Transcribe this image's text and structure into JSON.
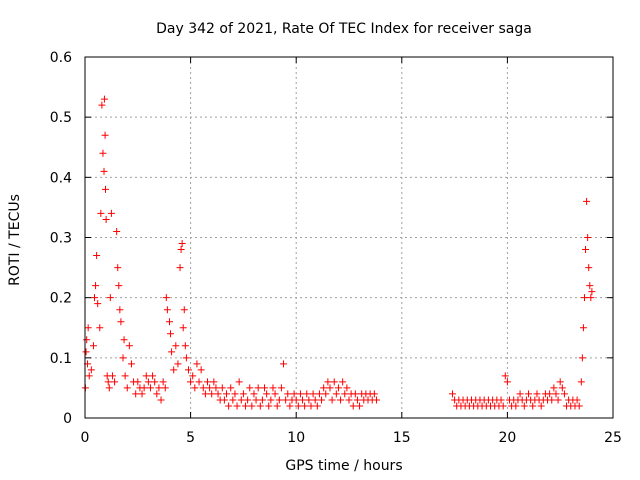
{
  "chart_data": {
    "type": "scatter",
    "title": "Day 342 of 2021, Rate Of TEC Index for receiver saga",
    "xlabel": "GPS time / hours",
    "ylabel": "ROTI / TECUs",
    "xlim": [
      0,
      25
    ],
    "ylim": [
      0,
      0.6
    ],
    "xticks": [
      0,
      5,
      10,
      15,
      20,
      25
    ],
    "xtick_labels": [
      "0",
      "5",
      "10",
      "15",
      "20",
      "25"
    ],
    "yticks": [
      0,
      0.1,
      0.2,
      0.3,
      0.4,
      0.5,
      0.6
    ],
    "ytick_labels": [
      "0",
      "0.1",
      "0.2",
      "0.3",
      "0.4",
      "0.5",
      "0.6"
    ],
    "grid": true,
    "marker": "+",
    "colors": {
      "points": "#ff0000",
      "grid": "#a0a0a0",
      "axes": "#000000"
    },
    "series": [
      {
        "name": "ROTI",
        "points": [
          [
            0.02,
            0.05
          ],
          [
            0.05,
            0.11
          ],
          [
            0.08,
            0.13
          ],
          [
            0.12,
            0.09
          ],
          [
            0.15,
            0.15
          ],
          [
            0.2,
            0.07
          ],
          [
            0.3,
            0.08
          ],
          [
            0.4,
            0.12
          ],
          [
            0.45,
            0.2
          ],
          [
            0.5,
            0.22
          ],
          [
            0.55,
            0.27
          ],
          [
            0.6,
            0.19
          ],
          [
            0.7,
            0.15
          ],
          [
            0.75,
            0.34
          ],
          [
            0.8,
            0.52
          ],
          [
            0.85,
            0.44
          ],
          [
            0.9,
            0.41
          ],
          [
            0.92,
            0.53
          ],
          [
            0.95,
            0.47
          ],
          [
            0.97,
            0.38
          ],
          [
            1.0,
            0.33
          ],
          [
            1.05,
            0.07
          ],
          [
            1.1,
            0.06
          ],
          [
            1.15,
            0.05
          ],
          [
            1.2,
            0.2
          ],
          [
            1.25,
            0.34
          ],
          [
            1.3,
            0.07
          ],
          [
            1.4,
            0.06
          ],
          [
            1.5,
            0.31
          ],
          [
            1.55,
            0.25
          ],
          [
            1.6,
            0.22
          ],
          [
            1.65,
            0.18
          ],
          [
            1.7,
            0.16
          ],
          [
            1.8,
            0.1
          ],
          [
            1.85,
            0.13
          ],
          [
            1.9,
            0.07
          ],
          [
            2.0,
            0.05
          ],
          [
            2.1,
            0.12
          ],
          [
            2.2,
            0.09
          ],
          [
            2.3,
            0.06
          ],
          [
            2.4,
            0.04
          ],
          [
            2.5,
            0.06
          ],
          [
            2.6,
            0.05
          ],
          [
            2.7,
            0.04
          ],
          [
            2.8,
            0.05
          ],
          [
            2.9,
            0.07
          ],
          [
            3.0,
            0.06
          ],
          [
            3.1,
            0.05
          ],
          [
            3.2,
            0.07
          ],
          [
            3.3,
            0.06
          ],
          [
            3.4,
            0.04
          ],
          [
            3.5,
            0.05
          ],
          [
            3.6,
            0.03
          ],
          [
            3.7,
            0.06
          ],
          [
            3.8,
            0.05
          ],
          [
            3.85,
            0.2
          ],
          [
            3.9,
            0.18
          ],
          [
            4.0,
            0.16
          ],
          [
            4.05,
            0.14
          ],
          [
            4.1,
            0.11
          ],
          [
            4.2,
            0.08
          ],
          [
            4.3,
            0.12
          ],
          [
            4.4,
            0.09
          ],
          [
            4.5,
            0.25
          ],
          [
            4.55,
            0.28
          ],
          [
            4.6,
            0.29
          ],
          [
            4.65,
            0.15
          ],
          [
            4.7,
            0.18
          ],
          [
            4.75,
            0.12
          ],
          [
            4.8,
            0.1
          ],
          [
            4.9,
            0.08
          ],
          [
            5.0,
            0.06
          ],
          [
            5.1,
            0.07
          ],
          [
            5.2,
            0.05
          ],
          [
            5.3,
            0.09
          ],
          [
            5.4,
            0.06
          ],
          [
            5.5,
            0.08
          ],
          [
            5.6,
            0.05
          ],
          [
            5.7,
            0.04
          ],
          [
            5.8,
            0.06
          ],
          [
            5.9,
            0.05
          ],
          [
            6.0,
            0.04
          ],
          [
            6.1,
            0.06
          ],
          [
            6.2,
            0.05
          ],
          [
            6.3,
            0.04
          ],
          [
            6.4,
            0.03
          ],
          [
            6.5,
            0.05
          ],
          [
            6.6,
            0.03
          ],
          [
            6.7,
            0.04
          ],
          [
            6.8,
            0.02
          ],
          [
            6.9,
            0.05
          ],
          [
            7.0,
            0.03
          ],
          [
            7.1,
            0.04
          ],
          [
            7.2,
            0.02
          ],
          [
            7.3,
            0.06
          ],
          [
            7.4,
            0.03
          ],
          [
            7.5,
            0.04
          ],
          [
            7.6,
            0.02
          ],
          [
            7.7,
            0.03
          ],
          [
            7.8,
            0.05
          ],
          [
            7.9,
            0.02
          ],
          [
            8.0,
            0.04
          ],
          [
            8.1,
            0.03
          ],
          [
            8.2,
            0.05
          ],
          [
            8.3,
            0.02
          ],
          [
            8.4,
            0.03
          ],
          [
            8.5,
            0.05
          ],
          [
            8.6,
            0.04
          ],
          [
            8.7,
            0.02
          ],
          [
            8.8,
            0.03
          ],
          [
            8.9,
            0.05
          ],
          [
            9.0,
            0.04
          ],
          [
            9.1,
            0.02
          ],
          [
            9.2,
            0.03
          ],
          [
            9.3,
            0.05
          ],
          [
            9.4,
            0.09
          ],
          [
            9.5,
            0.03
          ],
          [
            9.6,
            0.04
          ],
          [
            9.7,
            0.02
          ],
          [
            9.8,
            0.03
          ],
          [
            9.9,
            0.04
          ],
          [
            10.0,
            0.03
          ],
          [
            10.1,
            0.02
          ],
          [
            10.2,
            0.04
          ],
          [
            10.3,
            0.03
          ],
          [
            10.4,
            0.02
          ],
          [
            10.5,
            0.04
          ],
          [
            10.6,
            0.03
          ],
          [
            10.7,
            0.02
          ],
          [
            10.8,
            0.04
          ],
          [
            10.9,
            0.03
          ],
          [
            11.0,
            0.02
          ],
          [
            11.1,
            0.04
          ],
          [
            11.2,
            0.03
          ],
          [
            11.3,
            0.05
          ],
          [
            11.4,
            0.04
          ],
          [
            11.5,
            0.06
          ],
          [
            11.6,
            0.05
          ],
          [
            11.7,
            0.03
          ],
          [
            11.8,
            0.06
          ],
          [
            11.9,
            0.04
          ],
          [
            12.0,
            0.05
          ],
          [
            12.1,
            0.03
          ],
          [
            12.2,
            0.06
          ],
          [
            12.3,
            0.04
          ],
          [
            12.4,
            0.05
          ],
          [
            12.5,
            0.03
          ],
          [
            12.6,
            0.04
          ],
          [
            12.7,
            0.02
          ],
          [
            12.8,
            0.04
          ],
          [
            12.9,
            0.03
          ],
          [
            13.0,
            0.02
          ],
          [
            13.1,
            0.04
          ],
          [
            13.2,
            0.03
          ],
          [
            13.3,
            0.04
          ],
          [
            13.4,
            0.03
          ],
          [
            13.5,
            0.04
          ],
          [
            13.6,
            0.03
          ],
          [
            13.7,
            0.04
          ],
          [
            13.8,
            0.03
          ],
          [
            17.4,
            0.04
          ],
          [
            17.5,
            0.03
          ],
          [
            17.6,
            0.02
          ],
          [
            17.7,
            0.03
          ],
          [
            17.8,
            0.02
          ],
          [
            17.9,
            0.03
          ],
          [
            18.0,
            0.02
          ],
          [
            18.1,
            0.03
          ],
          [
            18.2,
            0.02
          ],
          [
            18.3,
            0.03
          ],
          [
            18.4,
            0.02
          ],
          [
            18.5,
            0.03
          ],
          [
            18.6,
            0.02
          ],
          [
            18.7,
            0.03
          ],
          [
            18.8,
            0.02
          ],
          [
            18.9,
            0.03
          ],
          [
            19.0,
            0.02
          ],
          [
            19.1,
            0.03
          ],
          [
            19.2,
            0.02
          ],
          [
            19.3,
            0.03
          ],
          [
            19.4,
            0.02
          ],
          [
            19.5,
            0.03
          ],
          [
            19.6,
            0.02
          ],
          [
            19.7,
            0.03
          ],
          [
            19.8,
            0.02
          ],
          [
            19.9,
            0.07
          ],
          [
            20.0,
            0.06
          ],
          [
            20.1,
            0.03
          ],
          [
            20.2,
            0.02
          ],
          [
            20.3,
            0.03
          ],
          [
            20.4,
            0.02
          ],
          [
            20.5,
            0.03
          ],
          [
            20.6,
            0.04
          ],
          [
            20.7,
            0.03
          ],
          [
            20.8,
            0.02
          ],
          [
            20.9,
            0.03
          ],
          [
            21.0,
            0.04
          ],
          [
            21.1,
            0.03
          ],
          [
            21.2,
            0.02
          ],
          [
            21.3,
            0.03
          ],
          [
            21.4,
            0.04
          ],
          [
            21.5,
            0.03
          ],
          [
            21.6,
            0.02
          ],
          [
            21.7,
            0.03
          ],
          [
            21.8,
            0.04
          ],
          [
            21.9,
            0.03
          ],
          [
            22.0,
            0.04
          ],
          [
            22.1,
            0.03
          ],
          [
            22.2,
            0.05
          ],
          [
            22.3,
            0.04
          ],
          [
            22.4,
            0.03
          ],
          [
            22.5,
            0.06
          ],
          [
            22.6,
            0.05
          ],
          [
            22.7,
            0.04
          ],
          [
            22.8,
            0.02
          ],
          [
            22.9,
            0.03
          ],
          [
            23.0,
            0.02
          ],
          [
            23.1,
            0.03
          ],
          [
            23.2,
            0.02
          ],
          [
            23.3,
            0.03
          ],
          [
            23.4,
            0.02
          ],
          [
            23.5,
            0.06
          ],
          [
            23.55,
            0.1
          ],
          [
            23.6,
            0.15
          ],
          [
            23.65,
            0.2
          ],
          [
            23.7,
            0.28
          ],
          [
            23.75,
            0.36
          ],
          [
            23.8,
            0.3
          ],
          [
            23.85,
            0.25
          ],
          [
            23.9,
            0.22
          ],
          [
            23.95,
            0.2
          ],
          [
            24.0,
            0.21
          ]
        ]
      }
    ]
  }
}
